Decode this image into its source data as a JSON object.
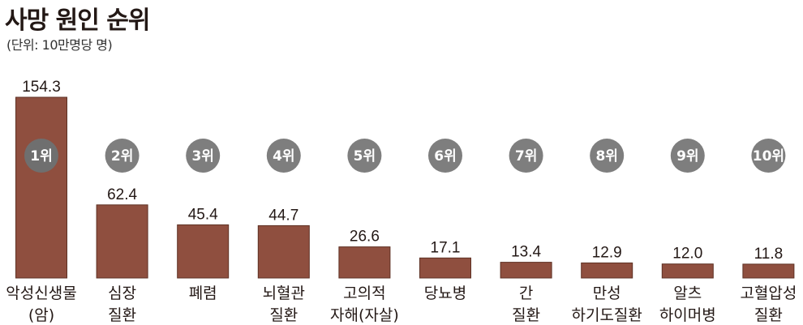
{
  "header": {
    "title": "사망 원인 순위",
    "subtitle": "(단위: 10만명당 명)"
  },
  "colors": {
    "bar": "#8f4f3f",
    "bar_edge": "#5e3124",
    "badge": "#7e7e7e",
    "badge_on_bar": "#6f6f6f"
  },
  "chart_data": {
    "type": "bar",
    "title": "사망 원인 순위",
    "subtitle": "(단위: 10만명당 명)",
    "unit": "10만명당 명",
    "ylim": [
      0,
      154.3
    ],
    "grid": false,
    "legend": "none",
    "categories": [
      [
        "악성신생물",
        "(암)"
      ],
      [
        "심장",
        "질환"
      ],
      [
        "폐렴"
      ],
      [
        "뇌혈관",
        "질환"
      ],
      [
        "고의적",
        "자해(자살)"
      ],
      [
        "당뇨병"
      ],
      [
        "간",
        "질환"
      ],
      [
        "만성",
        "하기도질환"
      ],
      [
        "알츠",
        "하이머병"
      ],
      [
        "고혈압성",
        "질환"
      ]
    ],
    "ranks": [
      "1위",
      "2위",
      "3위",
      "4위",
      "5위",
      "6위",
      "7위",
      "8위",
      "9위",
      "10위"
    ],
    "values": [
      154.3,
      62.4,
      45.4,
      44.7,
      26.6,
      17.1,
      13.4,
      12.9,
      12.0,
      11.8
    ],
    "value_labels": [
      "154.3",
      "62.4",
      "45.4",
      "44.7",
      "26.6",
      "17.1",
      "13.4",
      "12.9",
      "12.0",
      "11.8"
    ]
  }
}
